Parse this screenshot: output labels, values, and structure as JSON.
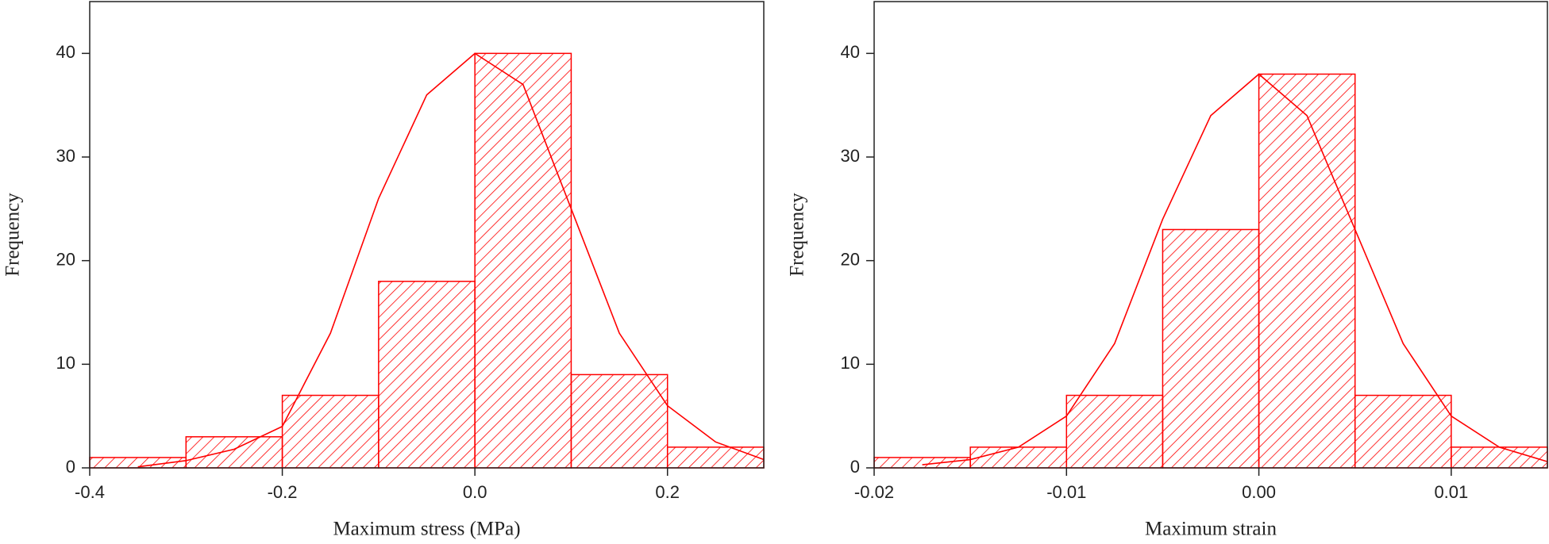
{
  "chart_data": [
    {
      "type": "histogram",
      "xlabel": "Maximum stress (MPa)",
      "ylabel": "Frequency",
      "bins": [
        -0.4,
        -0.3,
        -0.2,
        -0.1,
        0.0,
        0.1,
        0.2,
        0.3
      ],
      "values": [
        1,
        3,
        7,
        18,
        40,
        9,
        2
      ],
      "color": "#ff0000",
      "curve": {
        "x": [
          -0.35,
          -0.3,
          -0.25,
          -0.2,
          -0.15,
          -0.1,
          -0.05,
          0.0,
          0.05,
          0.1,
          0.15,
          0.2,
          0.25,
          0.3
        ],
        "y": [
          0.1,
          0.7,
          1.8,
          4,
          13,
          26,
          36,
          40,
          37,
          25,
          13,
          6,
          2.5,
          0.8
        ]
      },
      "xlim": [
        -0.4,
        0.3
      ],
      "ylim": [
        0,
        45
      ],
      "xticks": [
        -0.4,
        -0.2,
        {
          "value": 0,
          "label": "0.0"
        },
        0.2
      ],
      "yticks": [
        0,
        10,
        20,
        30,
        40
      ]
    },
    {
      "type": "histogram",
      "xlabel": "Maximum strain",
      "ylabel": "Frequency",
      "bins": [
        -0.02,
        -0.015,
        -0.01,
        -0.005,
        0.0,
        0.005,
        0.01,
        0.015
      ],
      "values": [
        1,
        2,
        7,
        23,
        38,
        7,
        2
      ],
      "color": "#ff0000",
      "curve": {
        "x": [
          -0.0175,
          -0.015,
          -0.0125,
          -0.01,
          -0.0075,
          -0.005,
          -0.0025,
          0.0,
          0.0025,
          0.005,
          0.0075,
          0.01,
          0.0125,
          0.015
        ],
        "y": [
          0.3,
          0.8,
          2,
          5,
          12,
          24,
          34,
          38,
          34,
          23,
          12,
          5,
          2,
          0.6
        ]
      },
      "xlim": [
        -0.02,
        0.015
      ],
      "ylim": [
        0,
        45
      ],
      "xticks": [
        -0.02,
        -0.01,
        {
          "value": 0,
          "label": "0.00"
        },
        0.01
      ],
      "yticks": [
        0,
        10,
        20,
        30,
        40
      ]
    }
  ]
}
